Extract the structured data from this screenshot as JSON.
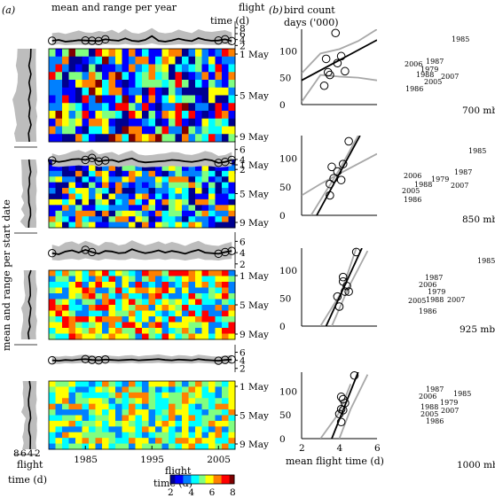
{
  "panel_a": {
    "label": "(a)",
    "top_title": "mean and range per year",
    "flight_time_label_1": "flight",
    "flight_time_label_2": "time (d)",
    "left_axis_title": "mean and range per start date",
    "bottom_left_ticks": [
      "8",
      "6",
      "4",
      "2"
    ],
    "bottom_left_label_1": "flight",
    "bottom_left_label_2": "time (d)",
    "date_ticks": [
      "1 May",
      "5 May",
      "9 May"
    ],
    "year_ticks": [
      "1985",
      "1995",
      "2005"
    ],
    "colorbar_title_1": "flight",
    "colorbar_title_2": "time (d)",
    "colorbar_ticks": [
      "2",
      "4",
      "6",
      "8"
    ],
    "heat_colors": [
      "#00008f",
      "#0000ff",
      "#0080ff",
      "#00ffff",
      "#80ff80",
      "#ffff00",
      "#ff8000",
      "#ff0000",
      "#800000"
    ]
  },
  "panel_b": {
    "label": "(b)",
    "ylabel_1": "bird count",
    "ylabel_2": "days ('000)",
    "xlabel": "mean flight time (d)",
    "x_ticks": [
      "2",
      "4",
      "6"
    ],
    "y_ticks": [
      "0",
      "50",
      "100"
    ],
    "levels": [
      "700 mb",
      "850 mb",
      "925 mb",
      "1000 mb"
    ]
  },
  "chart_data": [
    {
      "type": "line",
      "title": "mean and range per year",
      "panels": [
        {
          "level": "700 mb",
          "y_ticks": [
            "2",
            "4",
            "6",
            "8"
          ],
          "ylim": [
            1.5,
            9
          ],
          "x": [
            1980,
            1981,
            1982,
            1983,
            1984,
            1985,
            1986,
            1987,
            1988,
            1989,
            1990,
            1991,
            1992,
            1993,
            1994,
            1995,
            1996,
            1997,
            1998,
            1999,
            2000,
            2001,
            2002,
            2003,
            2004,
            2005,
            2006,
            2007
          ],
          "mean": [
            3.6,
            3.9,
            3.3,
            3.5,
            3.8,
            3.7,
            3.6,
            3.5,
            4.1,
            3.8,
            3.6,
            4.4,
            3.6,
            3.4,
            3.9,
            5.2,
            3.6,
            3.3,
            3.7,
            4.3,
            3.8,
            3.5,
            4.5,
            3.9,
            3.6,
            3.7,
            4.1,
            3.5
          ],
          "max": [
            6.2,
            6.4,
            5.9,
            6.5,
            7.1,
            6.4,
            6.3,
            6.9,
            6.6,
            7.3,
            6.2,
            7.6,
            6.3,
            6.0,
            6.7,
            7.9,
            6.5,
            6.1,
            6.4,
            7.4,
            6.7,
            6.2,
            7.5,
            6.8,
            6.6,
            6.9,
            7.2,
            6.4
          ],
          "min": [
            2.2,
            2.4,
            2.1,
            2.2,
            2.3,
            2.2,
            2.2,
            2.1,
            2.4,
            2.3,
            2.2,
            2.5,
            2.2,
            2.1,
            2.3,
            2.7,
            2.2,
            2.1,
            2.2,
            2.4,
            2.3,
            2.2,
            2.5,
            2.3,
            2.2,
            2.2,
            2.4,
            2.2
          ],
          "circled_years": [
            1980,
            1985,
            1986,
            1987,
            1988,
            2005,
            2006,
            2007
          ]
        },
        {
          "level": "850 mb",
          "y_ticks": [
            "2",
            "4",
            "6"
          ],
          "ylim": [
            1.5,
            7
          ],
          "x": [
            1980,
            1981,
            1982,
            1983,
            1984,
            1985,
            1986,
            1987,
            1988,
            1989,
            1990,
            1991,
            1992,
            1993,
            1994,
            1995,
            1996,
            1997,
            1998,
            1999,
            2000,
            2001,
            2002,
            2003,
            2004,
            2005,
            2006,
            2007
          ],
          "mean": [
            3.8,
            3.5,
            3.7,
            4.0,
            4.1,
            3.9,
            4.3,
            3.6,
            3.8,
            3.9,
            3.5,
            3.9,
            4.2,
            3.6,
            3.4,
            3.5,
            3.6,
            3.7,
            3.9,
            3.8,
            3.6,
            3.5,
            3.7,
            4.0,
            3.8,
            3.3,
            3.5,
            3.9
          ],
          "max": [
            5.2,
            4.8,
            5.1,
            5.6,
            5.9,
            5.4,
            6.0,
            5.0,
            5.3,
            5.5,
            4.9,
            5.4,
            5.8,
            5.0,
            4.8,
            4.9,
            5.1,
            5.2,
            5.5,
            5.4,
            5.0,
            4.9,
            5.2,
            5.7,
            5.4,
            4.7,
            4.9,
            5.5
          ],
          "min": [
            2.6,
            2.5,
            2.6,
            2.7,
            2.8,
            2.7,
            2.9,
            2.5,
            2.6,
            2.7,
            2.5,
            2.7,
            2.8,
            2.5,
            2.4,
            2.5,
            2.5,
            2.6,
            2.7,
            2.6,
            2.5,
            2.5,
            2.6,
            2.7,
            2.6,
            2.4,
            2.5,
            2.7
          ],
          "circled_years": [
            1980,
            1985,
            1986,
            1987,
            1988,
            1979,
            2005,
            2006,
            2007
          ]
        },
        {
          "level": "925 mb",
          "y_ticks": [
            "2",
            "4",
            "6"
          ],
          "ylim": [
            1.5,
            7
          ],
          "x": [
            1980,
            1981,
            1982,
            1983,
            1984,
            1985,
            1986,
            1987,
            1988,
            1989,
            1990,
            1991,
            1992,
            1993,
            1994,
            1995,
            1996,
            1997,
            1998,
            1999,
            2000,
            2001,
            2002,
            2003,
            2004,
            2005,
            2006,
            2007
          ],
          "mean": [
            3.9,
            3.7,
            4.2,
            4.4,
            4.0,
            4.5,
            4.1,
            3.8,
            4.3,
            4.2,
            3.9,
            4.0,
            4.6,
            4.2,
            3.9,
            4.1,
            4.4,
            4.0,
            4.3,
            4.1,
            3.8,
            4.2,
            4.5,
            4.0,
            3.9,
            3.8,
            4.1,
            4.3
          ],
          "max": [
            5.4,
            5.1,
            5.8,
            6.0,
            5.5,
            6.1,
            5.7,
            5.2,
            5.9,
            5.8,
            5.3,
            5.5,
            6.2,
            5.7,
            5.3,
            5.6,
            6.0,
            5.5,
            5.9,
            5.6,
            5.2,
            5.7,
            6.1,
            5.5,
            5.3,
            5.2,
            5.6,
            5.9
          ],
          "min": [
            2.7,
            2.6,
            2.8,
            2.9,
            2.7,
            3.0,
            2.8,
            2.6,
            2.9,
            2.8,
            2.7,
            2.7,
            3.0,
            2.8,
            2.7,
            2.8,
            2.9,
            2.7,
            2.9,
            2.8,
            2.6,
            2.8,
            3.0,
            2.7,
            2.7,
            2.6,
            2.8,
            2.9
          ],
          "circled_years": [
            1980,
            1985,
            1986,
            2005,
            2006,
            2007
          ]
        },
        {
          "level": "1000 mb",
          "y_ticks": [
            "2",
            "4",
            "6"
          ],
          "ylim": [
            1.5,
            7
          ],
          "x": [
            1980,
            1981,
            1982,
            1983,
            1984,
            1985,
            1986,
            1987,
            1988,
            1989,
            1990,
            1991,
            1992,
            1993,
            1994,
            1995,
            1996,
            1997,
            1998,
            1999,
            2000,
            2001,
            2002,
            2003,
            2004,
            2005,
            2006,
            2007
          ],
          "mean": [
            4.0,
            3.9,
            4.1,
            4.0,
            4.2,
            4.3,
            4.1,
            4.0,
            4.2,
            4.1,
            4.0,
            4.1,
            4.2,
            4.0,
            4.1,
            4.2,
            4.3,
            4.1,
            4.0,
            4.2,
            4.1,
            4.0,
            4.3,
            4.1,
            4.0,
            3.9,
            4.1,
            4.2
          ],
          "max": [
            5.0,
            4.9,
            5.1,
            5.0,
            5.3,
            5.4,
            5.2,
            5.0,
            5.3,
            5.1,
            5.0,
            5.2,
            5.3,
            5.0,
            5.2,
            5.3,
            5.5,
            5.2,
            5.0,
            5.3,
            5.2,
            5.0,
            5.4,
            5.2,
            5.0,
            4.9,
            5.2,
            5.3
          ],
          "min": [
            3.2,
            3.1,
            3.3,
            3.2,
            3.3,
            3.4,
            3.3,
            3.2,
            3.4,
            3.3,
            3.2,
            3.3,
            3.4,
            3.2,
            3.3,
            3.3,
            3.4,
            3.3,
            3.2,
            3.3,
            3.3,
            3.2,
            3.4,
            3.3,
            3.2,
            3.1,
            3.3,
            3.4
          ],
          "circled_years": [
            1980,
            1985,
            1986,
            1987,
            1988,
            2005,
            2006,
            2007
          ]
        }
      ]
    },
    {
      "type": "scatter",
      "xlabel": "mean flight time (d)",
      "ylabel": "bird count days ('000)",
      "xlim": [
        2,
        6
      ],
      "ylim": [
        0,
        140
      ],
      "panels": [
        {
          "level": "700 mb",
          "points": [
            {
              "year": "1985",
              "x": 3.8,
              "y": 133
            },
            {
              "year": "2006",
              "x": 3.3,
              "y": 85
            },
            {
              "year": "1987",
              "x": 4.1,
              "y": 90
            },
            {
              "year": "1979",
              "x": 3.9,
              "y": 77
            },
            {
              "year": "1988",
              "x": 3.4,
              "y": 60
            },
            {
              "year": "2005",
              "x": 3.5,
              "y": 55
            },
            {
              "year": "2007",
              "x": 4.3,
              "y": 62
            },
            {
              "year": "1986",
              "x": 3.2,
              "y": 35
            }
          ],
          "fit": [
            [
              2,
              45
            ],
            [
              6,
              120
            ]
          ],
          "ci_upper": [
            [
              2,
              58
            ],
            [
              3,
              95
            ],
            [
              4,
              103
            ],
            [
              5,
              118
            ],
            [
              6,
              140
            ]
          ],
          "ci_lower": [
            [
              2,
              5
            ],
            [
              3,
              55
            ],
            [
              4,
              52
            ],
            [
              5,
              50
            ],
            [
              6,
              45
            ]
          ]
        },
        {
          "level": "850 mb",
          "points": [
            {
              "year": "1985",
              "x": 4.5,
              "y": 130
            },
            {
              "year": "2006",
              "x": 3.6,
              "y": 85
            },
            {
              "year": "1987",
              "x": 4.2,
              "y": 90
            },
            {
              "year": "1979",
              "x": 3.9,
              "y": 77
            },
            {
              "year": "1988",
              "x": 3.7,
              "y": 65
            },
            {
              "year": "2005",
              "x": 3.5,
              "y": 55
            },
            {
              "year": "2007",
              "x": 4.1,
              "y": 62
            },
            {
              "year": "1986",
              "x": 3.5,
              "y": 35
            }
          ],
          "fit": [
            [
              2.8,
              0
            ],
            [
              5.1,
              140
            ]
          ],
          "ci_upper": [
            [
              2.5,
              0
            ],
            [
              4,
              80
            ],
            [
              5,
              140
            ]
          ],
          "ci_lower": [
            [
              2,
              35
            ],
            [
              3,
              55
            ],
            [
              4,
              73
            ],
            [
              6,
              108
            ]
          ]
        },
        {
          "level": "925 mb",
          "points": [
            {
              "year": "1985",
              "x": 4.9,
              "y": 133
            },
            {
              "year": "1987",
              "x": 4.2,
              "y": 88
            },
            {
              "year": "2006",
              "x": 4.2,
              "y": 80
            },
            {
              "year": "1979",
              "x": 4.4,
              "y": 72
            },
            {
              "year": "1988",
              "x": 4.3,
              "y": 62
            },
            {
              "year": "2007",
              "x": 4.5,
              "y": 62
            },
            {
              "year": "2005",
              "x": 3.9,
              "y": 53
            },
            {
              "year": "1986",
              "x": 4.0,
              "y": 35
            }
          ],
          "fit": [
            [
              3.3,
              0
            ],
            [
              5.2,
              140
            ]
          ],
          "ci_upper": [
            [
              3,
              0
            ],
            [
              4.1,
              60
            ],
            [
              4.9,
              140
            ]
          ],
          "ci_lower": [
            [
              3.6,
              0
            ],
            [
              4.5,
              70
            ],
            [
              5.5,
              135
            ]
          ]
        },
        {
          "level": "1000 mb",
          "points": [
            {
              "year": "1985",
              "x": 4.8,
              "y": 133
            },
            {
              "year": "1987",
              "x": 4.1,
              "y": 88
            },
            {
              "year": "2006",
              "x": 4.2,
              "y": 83
            },
            {
              "year": "1979",
              "x": 4.3,
              "y": 75
            },
            {
              "year": "1988",
              "x": 4.1,
              "y": 62
            },
            {
              "year": "2007",
              "x": 4.2,
              "y": 60
            },
            {
              "year": "2005",
              "x": 4.0,
              "y": 52
            },
            {
              "year": "1986",
              "x": 4.1,
              "y": 35
            }
          ],
          "fit": [
            [
              3.6,
              0
            ],
            [
              5,
              140
            ]
          ],
          "ci_upper": [
            [
              3,
              0
            ],
            [
              4.0,
              55
            ],
            [
              4.6,
              115
            ]
          ],
          "ci_lower": [
            [
              4,
              0
            ],
            [
              4.6,
              62
            ],
            [
              5.5,
              135
            ]
          ]
        }
      ]
    }
  ]
}
